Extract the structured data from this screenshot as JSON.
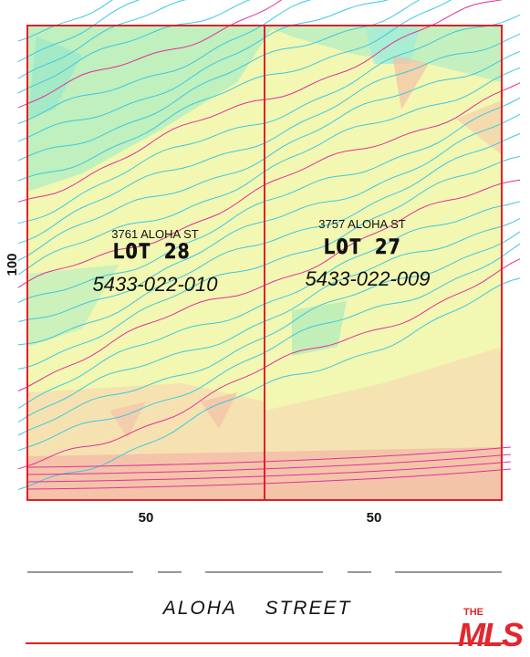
{
  "lots": [
    {
      "address": "3761 ALOHA ST",
      "lot": "LOT  28",
      "apn": "5433-022-010",
      "width_label": "50"
    },
    {
      "address": "3757 ALOHA ST",
      "lot": "LOT  27",
      "apn": "5433-022-009",
      "width_label": "50"
    }
  ],
  "depth_label": "100",
  "street": {
    "name": "ALOHA    STREET"
  },
  "logo": {
    "the": "THE",
    "mls": "MLS"
  },
  "colors": {
    "lot_boundary": "#e0202a",
    "contour_cyan": "#3cc8e0",
    "contour_index": "#e0309a",
    "fill_low": "#a8ecb0",
    "fill_mid": "#f2f7b2",
    "fill_high": "#f4c0a8",
    "street_line": "#e02020",
    "logo_red": "#e3262e"
  }
}
